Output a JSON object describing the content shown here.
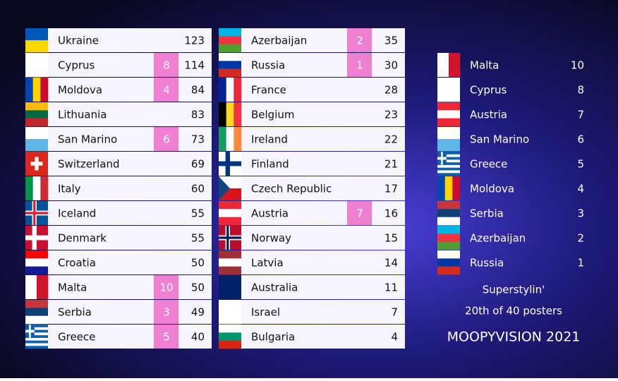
{
  "scoreboard": [
    {
      "country": "Ukraine",
      "total": 123
    },
    {
      "country": "Cyprus",
      "received": 8,
      "total": 114
    },
    {
      "country": "Moldova",
      "received": 4,
      "total": 84
    },
    {
      "country": "Lithuania",
      "total": 83
    },
    {
      "country": "San Marino",
      "received": 6,
      "total": 73
    },
    {
      "country": "Switzerland",
      "total": 69
    },
    {
      "country": "Italy",
      "total": 60
    },
    {
      "country": "Iceland",
      "total": 55
    },
    {
      "country": "Denmark",
      "total": 55
    },
    {
      "country": "Croatia",
      "total": 50
    },
    {
      "country": "Malta",
      "received": 10,
      "total": 50
    },
    {
      "country": "Serbia",
      "received": 3,
      "total": 49
    },
    {
      "country": "Greece",
      "received": 5,
      "total": 40
    },
    {
      "country": "Azerbaijan",
      "received": 2,
      "total": 35
    },
    {
      "country": "Russia",
      "received": 1,
      "total": 30
    },
    {
      "country": "France",
      "total": 28
    },
    {
      "country": "Belgium",
      "total": 23
    },
    {
      "country": "Ireland",
      "total": 22
    },
    {
      "country": "Finland",
      "total": 21
    },
    {
      "country": "Czech Republic",
      "total": 17
    },
    {
      "country": "Austria",
      "received": 7,
      "total": 16
    },
    {
      "country": "Norway",
      "total": 15
    },
    {
      "country": "Latvia",
      "total": 14
    },
    {
      "country": "Australia",
      "total": 11
    },
    {
      "country": "Israel",
      "total": 7
    },
    {
      "country": "Bulgaria",
      "total": 4
    }
  ],
  "given": [
    {
      "country": "Malta",
      "points": 10
    },
    {
      "country": "Cyprus",
      "points": 8
    },
    {
      "country": "Austria",
      "points": 7
    },
    {
      "country": "San Marino",
      "points": 6
    },
    {
      "country": "Greece",
      "points": 5
    },
    {
      "country": "Moldova",
      "points": 4
    },
    {
      "country": "Serbia",
      "points": 3
    },
    {
      "country": "Azerbaijan",
      "points": 2
    },
    {
      "country": "Russia",
      "points": 1
    }
  ],
  "caption": {
    "entry": "Superstylin'",
    "rank": "20th of 40 posters"
  },
  "title": "MOOPYVISION 2021"
}
